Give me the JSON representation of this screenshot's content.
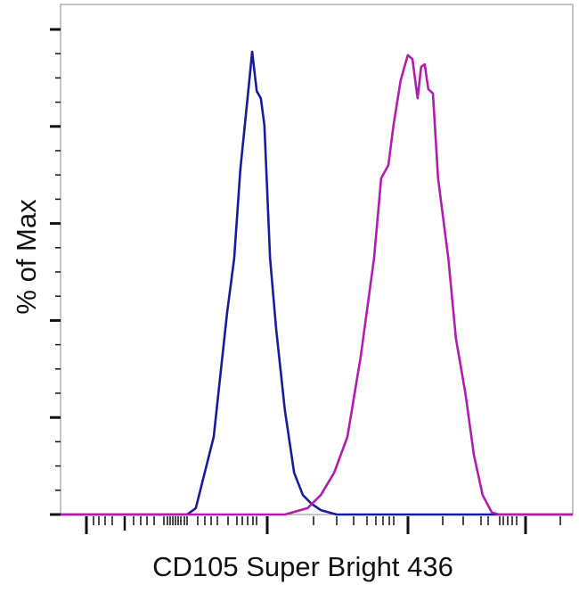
{
  "chart_data": {
    "type": "line",
    "title": "",
    "xlabel": "CD105 Super Bright 436",
    "ylabel": "% of Max",
    "x_scale": "log (biexponential), unlabeled ticks",
    "xlim": [
      0,
      100
    ],
    "ylim": [
      0,
      105
    ],
    "grid": false,
    "legend": "none",
    "series": [
      {
        "color": "#1a1a9c",
        "points": [
          [
            0,
            0
          ],
          [
            24.7,
            0
          ],
          [
            26.4,
            1.3
          ],
          [
            29.9,
            16.0
          ],
          [
            32.5,
            41.5
          ],
          [
            33.9,
            52.8
          ],
          [
            35.1,
            71.1
          ],
          [
            36.5,
            85.8
          ],
          [
            37.4,
            95.4
          ],
          [
            38.3,
            87.3
          ],
          [
            39.1,
            85.8
          ],
          [
            39.8,
            80.3
          ],
          [
            40.9,
            52.8
          ],
          [
            42.1,
            38.1
          ],
          [
            43.8,
            21.5
          ],
          [
            45.6,
            8.6
          ],
          [
            47.3,
            4.0
          ],
          [
            49.0,
            2.2
          ],
          [
            50.8,
            0.9
          ],
          [
            53.9,
            0
          ],
          [
            100,
            0
          ]
        ]
      },
      {
        "color": "#b01cb0",
        "points": [
          [
            0,
            0
          ],
          [
            43.8,
            0
          ],
          [
            48.2,
            1.3
          ],
          [
            50.8,
            4.0
          ],
          [
            53.4,
            8.6
          ],
          [
            56.0,
            16.0
          ],
          [
            58.6,
            32.5
          ],
          [
            61.2,
            52.8
          ],
          [
            62.6,
            69.3
          ],
          [
            64.0,
            72.0
          ],
          [
            65.0,
            80.3
          ],
          [
            66.4,
            89.5
          ],
          [
            67.8,
            94.7
          ],
          [
            68.7,
            93.9
          ],
          [
            69.7,
            85.8
          ],
          [
            70.4,
            92.3
          ],
          [
            71.1,
            92.8
          ],
          [
            71.8,
            87.7
          ],
          [
            72.7,
            86.8
          ],
          [
            73.7,
            69.3
          ],
          [
            75.7,
            52.8
          ],
          [
            77.2,
            36.2
          ],
          [
            79.0,
            25.2
          ],
          [
            80.7,
            12.3
          ],
          [
            82.4,
            4.0
          ],
          [
            84.2,
            0.4
          ],
          [
            85.6,
            0
          ],
          [
            100,
            0
          ]
        ]
      }
    ]
  }
}
